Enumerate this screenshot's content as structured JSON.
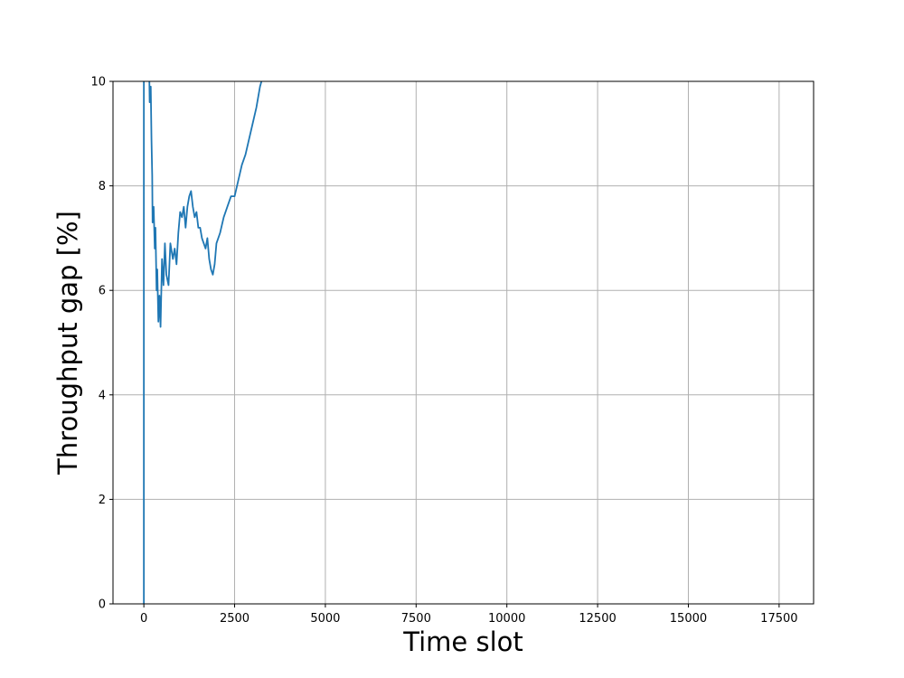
{
  "chart_data": {
    "type": "line",
    "title": "",
    "xlabel": "Time slot",
    "ylabel": "Throughput gap [%]",
    "xlim": [
      -850,
      18450
    ],
    "ylim": [
      0,
      10
    ],
    "x_ticks": [
      0,
      2500,
      5000,
      7500,
      10000,
      12500,
      15000,
      17500
    ],
    "y_ticks": [
      0,
      2,
      4,
      6,
      8,
      10
    ],
    "grid": true,
    "legend": "none",
    "series": [
      {
        "color": "#1f77b4",
        "points": [
          [
            0,
            0
          ],
          [
            0,
            10.2
          ],
          [
            40,
            10.2
          ],
          [
            80,
            10.2
          ],
          [
            110,
            10.2
          ],
          [
            150,
            10.1
          ],
          [
            160,
            9.6
          ],
          [
            190,
            9.9
          ],
          [
            210,
            8.9
          ],
          [
            230,
            8.2
          ],
          [
            240,
            7.3
          ],
          [
            270,
            7.6
          ],
          [
            300,
            6.8
          ],
          [
            320,
            7.2
          ],
          [
            350,
            6.0
          ],
          [
            370,
            6.4
          ],
          [
            400,
            5.4
          ],
          [
            430,
            5.9
          ],
          [
            460,
            5.3
          ],
          [
            500,
            6.6
          ],
          [
            540,
            6.1
          ],
          [
            580,
            6.9
          ],
          [
            620,
            6.3
          ],
          [
            680,
            6.1
          ],
          [
            730,
            6.9
          ],
          [
            800,
            6.6
          ],
          [
            850,
            6.8
          ],
          [
            900,
            6.5
          ],
          [
            950,
            7.1
          ],
          [
            1000,
            7.5
          ],
          [
            1050,
            7.4
          ],
          [
            1100,
            7.6
          ],
          [
            1150,
            7.2
          ],
          [
            1200,
            7.6
          ],
          [
            1250,
            7.8
          ],
          [
            1300,
            7.9
          ],
          [
            1350,
            7.6
          ],
          [
            1400,
            7.4
          ],
          [
            1450,
            7.5
          ],
          [
            1500,
            7.2
          ],
          [
            1550,
            7.2
          ],
          [
            1600,
            7.0
          ],
          [
            1650,
            6.9
          ],
          [
            1700,
            6.8
          ],
          [
            1750,
            7.0
          ],
          [
            1800,
            6.6
          ],
          [
            1850,
            6.4
          ],
          [
            1900,
            6.3
          ],
          [
            1950,
            6.5
          ],
          [
            2000,
            6.9
          ],
          [
            2100,
            7.1
          ],
          [
            2200,
            7.4
          ],
          [
            2300,
            7.6
          ],
          [
            2400,
            7.8
          ],
          [
            2500,
            7.8
          ],
          [
            2600,
            8.1
          ],
          [
            2700,
            8.4
          ],
          [
            2800,
            8.6
          ],
          [
            2900,
            8.9
          ],
          [
            3000,
            9.2
          ],
          [
            3100,
            9.5
          ],
          [
            3200,
            9.9
          ],
          [
            3280,
            10.1
          ]
        ]
      }
    ]
  }
}
